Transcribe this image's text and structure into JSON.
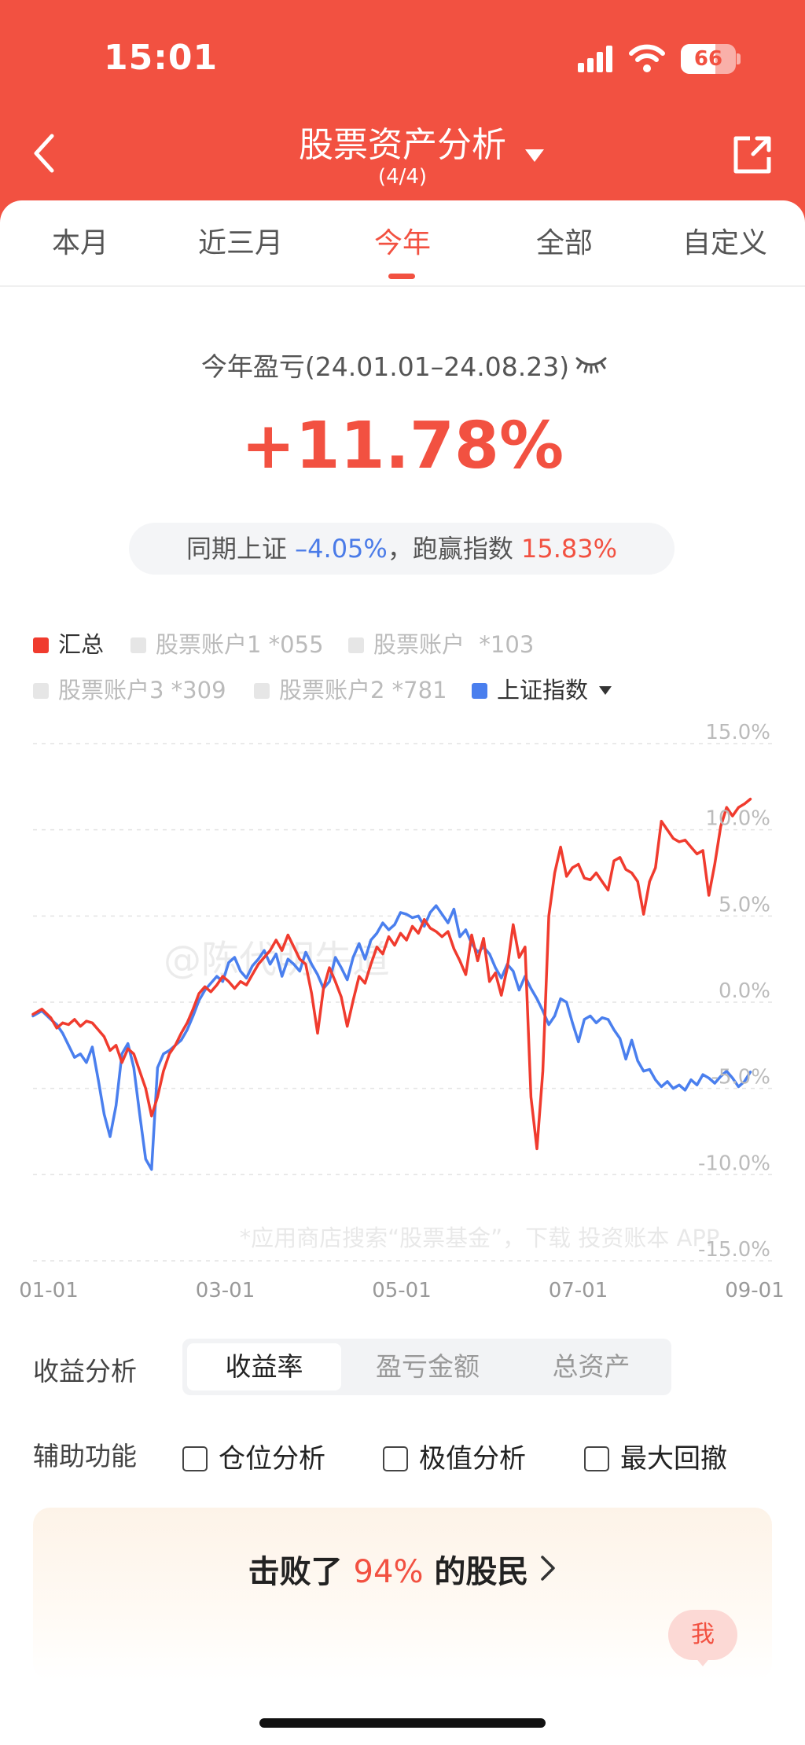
{
  "status_bar": {
    "time": "15:01",
    "battery": "66"
  },
  "nav": {
    "title": "股票资产分析",
    "subtitle": "(4/4)"
  },
  "tabs": [
    {
      "label": "本月",
      "active": false
    },
    {
      "label": "近三月",
      "active": false
    },
    {
      "label": "今年",
      "active": true
    },
    {
      "label": "全部",
      "active": false
    },
    {
      "label": "自定义",
      "active": false
    }
  ],
  "summary": {
    "period_label": "今年盈亏(24.01.01–24.08.23)",
    "return_pct": "+11.78%",
    "compare_prefix": "同期上证",
    "index_return": "–4.05%",
    "compare_mid": "，跑赢指数",
    "excess_return": "15.83%"
  },
  "legend": [
    {
      "label": "汇总",
      "color": "#f03b2e",
      "active": true
    },
    {
      "label": "股票账户1 *055",
      "color": "#e6e6e6",
      "active": false
    },
    {
      "label": "股票账户  *103",
      "color": "#e6e6e6",
      "active": false
    },
    {
      "label": "股票账户3 *309",
      "color": "#e6e6e6",
      "active": false
    },
    {
      "label": "股票账户2 *781",
      "color": "#e6e6e6",
      "active": false
    },
    {
      "label": "上证指数",
      "color": "#4a7fee",
      "active": true
    }
  ],
  "chart_data": {
    "type": "line",
    "x_tick_labels": [
      "01-01",
      "03-01",
      "05-01",
      "07-01",
      "09-01"
    ],
    "y_tick_labels": [
      "15.0%",
      "10.0%",
      "5.0%",
      "0.0%",
      "-5.0%",
      "-10.0%",
      "-15.0%"
    ],
    "ylim": [
      -15,
      15
    ],
    "xlim_days": [
      0,
      244
    ],
    "x_axis_unit": "days since 01-01",
    "grid": "horizontal dashed",
    "watermark": "@陈代明牛道",
    "footnote": "*应用商店搜索“股票基金”，下载 投资账本 APP",
    "series": [
      {
        "name": "汇总",
        "color": "#f03b2e",
        "x": [
          0,
          3,
          6,
          8,
          10,
          12,
          14,
          16,
          18,
          20,
          22,
          24,
          26,
          28,
          30,
          32,
          34,
          36,
          38,
          40,
          42,
          44,
          46,
          48,
          50,
          52,
          54,
          56,
          58,
          60,
          62,
          64,
          66,
          68,
          70,
          72,
          74,
          76,
          78,
          80,
          82,
          84,
          86,
          88,
          90,
          92,
          94,
          96,
          98,
          100,
          102,
          104,
          106,
          108,
          110,
          112,
          114,
          116,
          118,
          120,
          122,
          124,
          126,
          128,
          130,
          132,
          134,
          136,
          138,
          140,
          142,
          144,
          146,
          148,
          150,
          152,
          154,
          156,
          158,
          160,
          162,
          164,
          166,
          168,
          170,
          172,
          174,
          176,
          178,
          180,
          182,
          184,
          186,
          188,
          190,
          192,
          194,
          196,
          198,
          200,
          202,
          204,
          206,
          208,
          210,
          212,
          214,
          216,
          218,
          220,
          222,
          224,
          226,
          228,
          230,
          232,
          234,
          236,
          238,
          240,
          242
        ],
        "values": [
          -0.7,
          -0.4,
          -0.9,
          -1.5,
          -1.2,
          -1.3,
          -1.0,
          -1.4,
          -1.1,
          -1.2,
          -1.6,
          -2.0,
          -2.8,
          -2.5,
          -3.5,
          -2.7,
          -3.0,
          -4.0,
          -5.0,
          -6.6,
          -5.5,
          -4.0,
          -3.0,
          -2.5,
          -1.8,
          -1.2,
          -0.4,
          0.5,
          0.9,
          0.6,
          1.0,
          1.5,
          1.2,
          0.8,
          1.2,
          1.0,
          1.6,
          2.2,
          2.6,
          3.0,
          3.6,
          3.0,
          3.9,
          3.2,
          2.5,
          2.2,
          0.5,
          -1.8,
          0.8,
          2.0,
          1.2,
          0.3,
          -1.4,
          0.1,
          1.5,
          1.1,
          2.2,
          3.2,
          2.8,
          3.8,
          3.3,
          4.0,
          3.6,
          4.4,
          4.0,
          4.8,
          4.3,
          4.1,
          3.8,
          4.1,
          3.1,
          2.4,
          1.6,
          3.9,
          2.4,
          3.7,
          1.2,
          1.7,
          0.4,
          2.0,
          4.5,
          2.6,
          3.2,
          -5.5,
          -8.5,
          -4.0,
          5.0,
          7.5,
          9.0,
          7.3,
          7.8,
          8.0,
          7.2,
          7.1,
          7.5,
          7.0,
          6.5,
          8.2,
          8.4,
          7.7,
          7.5,
          7.0,
          5.1,
          7.0,
          7.8,
          10.5,
          10.0,
          9.5,
          9.3,
          9.4,
          9.0,
          8.6,
          8.8,
          6.2,
          8.0,
          10.2,
          11.3,
          10.8,
          11.3,
          11.5,
          11.78
        ]
      },
      {
        "name": "上证指数",
        "color": "#4a7fee",
        "x": [
          0,
          3,
          6,
          8,
          10,
          12,
          14,
          16,
          18,
          20,
          22,
          24,
          26,
          28,
          30,
          32,
          34,
          36,
          38,
          40,
          42,
          44,
          46,
          48,
          50,
          52,
          54,
          56,
          58,
          60,
          62,
          64,
          66,
          68,
          70,
          72,
          74,
          76,
          78,
          80,
          82,
          84,
          86,
          88,
          90,
          92,
          94,
          96,
          98,
          100,
          102,
          104,
          106,
          108,
          110,
          112,
          114,
          116,
          118,
          120,
          122,
          124,
          126,
          128,
          130,
          132,
          134,
          136,
          138,
          140,
          142,
          144,
          146,
          148,
          150,
          152,
          154,
          156,
          158,
          160,
          162,
          164,
          166,
          168,
          170,
          172,
          174,
          176,
          178,
          180,
          182,
          184,
          186,
          188,
          190,
          192,
          194,
          196,
          198,
          200,
          202,
          204,
          206,
          208,
          210,
          212,
          214,
          216,
          218,
          220,
          222,
          224,
          226,
          228,
          230,
          232,
          234,
          236,
          238,
          240,
          242
        ],
        "values": [
          -0.8,
          -0.5,
          -1.0,
          -1.3,
          -1.8,
          -2.5,
          -3.2,
          -3.0,
          -3.5,
          -2.6,
          -4.5,
          -6.5,
          -7.8,
          -6.0,
          -3.0,
          -2.4,
          -3.8,
          -6.5,
          -9.1,
          -9.7,
          -3.8,
          -3.0,
          -2.8,
          -2.5,
          -2.2,
          -1.6,
          -0.8,
          0.1,
          0.7,
          1.1,
          1.5,
          1.2,
          2.3,
          2.6,
          1.8,
          1.4,
          2.1,
          2.5,
          3.0,
          2.2,
          2.8,
          1.5,
          2.5,
          2.2,
          1.8,
          2.9,
          2.2,
          1.6,
          0.8,
          1.2,
          2.6,
          2.0,
          1.3,
          2.6,
          3.4,
          2.5,
          3.6,
          4.0,
          4.6,
          4.2,
          4.5,
          5.2,
          5.1,
          4.9,
          5.0,
          4.4,
          5.2,
          5.6,
          5.1,
          4.6,
          5.4,
          3.8,
          4.2,
          3.4,
          2.9,
          3.2,
          2.8,
          2.0,
          1.4,
          2.2,
          1.8,
          0.7,
          1.5,
          0.8,
          0.2,
          -0.5,
          -1.3,
          -0.8,
          0.2,
          0.0,
          -1.2,
          -2.3,
          -1.0,
          -0.8,
          -1.2,
          -0.9,
          -1.0,
          -1.6,
          -2.1,
          -3.3,
          -2.2,
          -3.4,
          -4.0,
          -3.9,
          -4.5,
          -4.9,
          -4.6,
          -5.0,
          -4.8,
          -5.1,
          -4.5,
          -4.8,
          -4.2,
          -4.4,
          -4.7,
          -4.3,
          -4.0,
          -4.4,
          -4.9,
          -4.6,
          -4.05
        ]
      }
    ]
  },
  "analysis": {
    "label": "收益分析",
    "options": [
      {
        "label": "收益率",
        "active": true
      },
      {
        "label": "盈亏金额",
        "active": false
      },
      {
        "label": "总资产",
        "active": false
      }
    ]
  },
  "assist": {
    "label": "辅助功能",
    "options": [
      {
        "label": "仓位分析",
        "checked": false
      },
      {
        "label": "极值分析",
        "checked": false
      },
      {
        "label": "最大回撤",
        "checked": false
      }
    ]
  },
  "beat": {
    "prefix": "击败了",
    "pct": "94%",
    "suffix": "的股民"
  },
  "me_bubble": "我"
}
